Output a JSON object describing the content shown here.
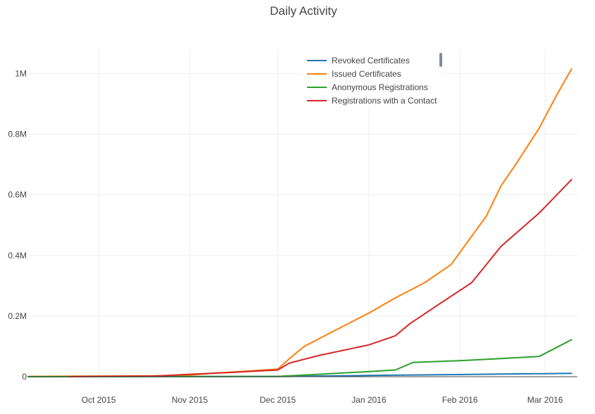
{
  "chart_data": {
    "type": "line",
    "title": "Daily Activity",
    "xlabel": "",
    "ylabel": "",
    "xlim": [
      "2015-09-07",
      "2016-03-12"
    ],
    "ylim": [
      0,
      1080000
    ],
    "y_ticks": [
      0,
      200000,
      400000,
      600000,
      800000,
      1000000
    ],
    "y_tick_labels": [
      "0",
      "0.2M",
      "0.4M",
      "0.6M",
      "0.8M",
      "1M"
    ],
    "x_ticks": [
      "2015-10-01",
      "2015-11-01",
      "2015-12-01",
      "2016-01-01",
      "2016-02-01",
      "2016-03-01"
    ],
    "x_tick_labels": [
      "Oct 2015",
      "Nov 2015",
      "Dec 2015",
      "Jan 2016",
      "Feb 2016",
      "Mar 2016"
    ],
    "grid": true,
    "legend_position": "top-right",
    "series": [
      {
        "name": "Revoked Certificates",
        "color": "#1f77b4",
        "x": [
          "2015-09-07",
          "2015-12-01",
          "2015-12-15",
          "2016-01-01",
          "2016-01-15",
          "2016-02-01",
          "2016-02-15",
          "2016-03-01",
          "2016-03-10"
        ],
        "y": [
          0,
          500,
          2000,
          4000,
          5500,
          7000,
          8500,
          10000,
          11000
        ]
      },
      {
        "name": "Issued Certificates",
        "color": "#ff7f0e",
        "x": [
          "2015-09-07",
          "2015-10-01",
          "2015-10-20",
          "2015-11-01",
          "2015-11-10",
          "2015-11-20",
          "2015-12-01",
          "2015-12-05",
          "2015-12-10",
          "2015-12-20",
          "2016-01-01",
          "2016-01-10",
          "2016-01-20",
          "2016-01-29",
          "2016-02-01",
          "2016-02-10",
          "2016-02-15",
          "2016-02-20",
          "2016-02-28",
          "2016-03-05",
          "2016-03-10"
        ],
        "y": [
          1000,
          2000,
          3000,
          5000,
          12000,
          18000,
          25000,
          60000,
          100000,
          150000,
          210000,
          260000,
          310000,
          370000,
          410000,
          530000,
          630000,
          700000,
          820000,
          930000,
          1015000
        ]
      },
      {
        "name": "Anonymous Registrations",
        "color": "#2ca02c",
        "x": [
          "2015-09-07",
          "2015-12-01",
          "2015-12-15",
          "2016-01-01",
          "2016-01-10",
          "2016-01-16",
          "2016-02-01",
          "2016-02-15",
          "2016-02-28",
          "2016-03-10"
        ],
        "y": [
          0,
          1000,
          8000,
          17000,
          22000,
          47000,
          53000,
          60000,
          67000,
          122000
        ]
      },
      {
        "name": "Registrations with a Contact",
        "color": "#d62728",
        "x": [
          "2015-09-21",
          "2015-10-20",
          "2015-11-01",
          "2015-11-15",
          "2015-12-01",
          "2015-12-05",
          "2015-12-15",
          "2016-01-01",
          "2016-01-10",
          "2016-01-15",
          "2016-01-25",
          "2016-02-05",
          "2016-02-15",
          "2016-02-28",
          "2016-03-05",
          "2016-03-10"
        ],
        "y": [
          0,
          2000,
          8000,
          14000,
          22000,
          45000,
          70000,
          105000,
          135000,
          175000,
          240000,
          310000,
          430000,
          540000,
          600000,
          650000
        ]
      }
    ]
  }
}
